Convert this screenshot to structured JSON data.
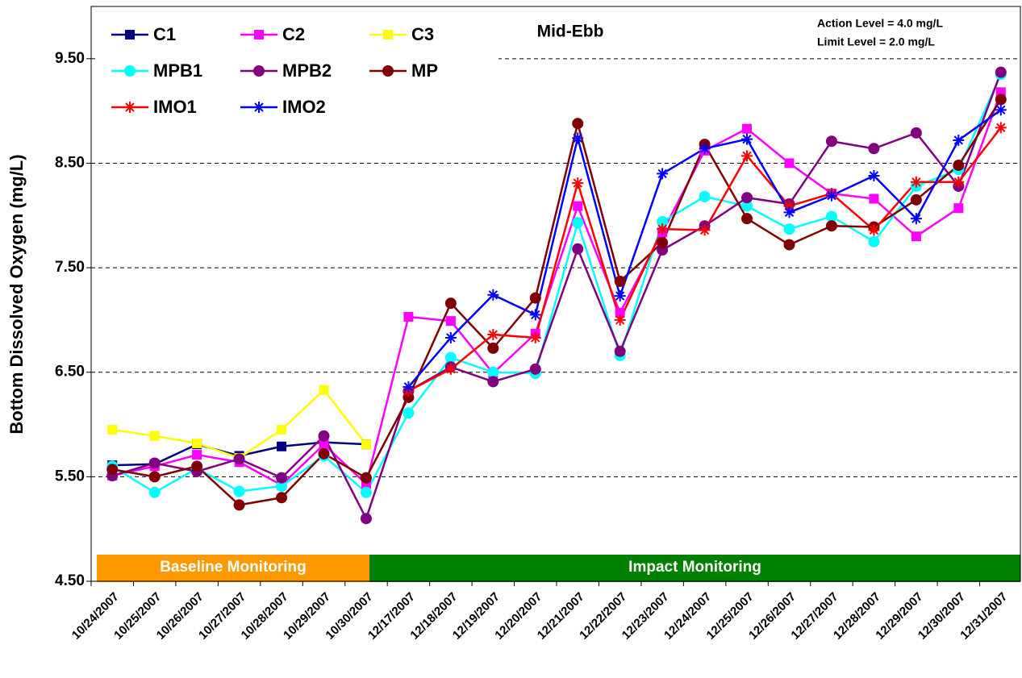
{
  "chart_data": {
    "type": "line",
    "title": "Mid-Ebb",
    "annotations": [
      "Action Level = 4.0 mg/L",
      "Limit Level = 2.0 mg/L"
    ],
    "y_label": "Bottom Dissolved Oxygen (mg/L)",
    "phases": [
      {
        "label": "Baseline Monitoring",
        "color": "#ff9900"
      },
      {
        "label": "Impact Monitoring",
        "color": "#008000"
      }
    ],
    "categories": [
      "10/24/2007",
      "10/25/2007",
      "10/26/2007",
      "10/27/2007",
      "10/28/2007",
      "10/29/2007",
      "10/30/2007",
      "12/17/2007",
      "12/18/2007",
      "12/19/2007",
      "12/20/2007",
      "12/21/2007",
      "12/22/2007",
      "12/23/2007",
      "12/24/2007",
      "12/25/2007",
      "12/26/2007",
      "12/27/2007",
      "12/28/2007",
      "12/29/2007",
      "12/30/2007",
      "12/31/2007"
    ],
    "ylim": [
      4.5,
      10.0
    ],
    "yticks": [
      {
        "value": 4.5,
        "label": "4.50"
      },
      {
        "value": 5.5,
        "label": "5.50"
      },
      {
        "value": 6.5,
        "label": "6.50"
      },
      {
        "value": 7.5,
        "label": "7.50"
      },
      {
        "value": 8.5,
        "label": "8.50"
      },
      {
        "value": 9.5,
        "label": "9.50"
      }
    ],
    "grid": true,
    "series": [
      {
        "name": "C1",
        "color": "#000080",
        "marker": "square",
        "values": [
          5.61,
          5.62,
          5.81,
          5.7,
          5.79,
          5.83,
          5.81,
          null,
          null,
          null,
          null,
          null,
          null,
          null,
          null,
          null,
          null,
          null,
          null,
          null,
          null,
          null
        ]
      },
      {
        "name": "C2",
        "color": "#ff00ff",
        "marker": "square",
        "values": [
          5.51,
          5.6,
          5.71,
          5.64,
          5.42,
          5.81,
          5.43,
          7.03,
          6.99,
          6.49,
          6.87,
          8.09,
          7.07,
          7.84,
          8.62,
          8.83,
          8.5,
          8.21,
          8.16,
          7.8,
          8.07,
          9.18
        ]
      },
      {
        "name": "C3",
        "color": "#ffff00",
        "marker": "square",
        "values": [
          5.95,
          5.89,
          5.82,
          5.68,
          5.95,
          6.33,
          5.81,
          null,
          null,
          null,
          null,
          null,
          null,
          null,
          null,
          null,
          null,
          null,
          null,
          null,
          null,
          null
        ]
      },
      {
        "name": "MPB1",
        "color": "#00ffff",
        "marker": "circle",
        "values": [
          5.6,
          5.35,
          5.58,
          5.36,
          5.41,
          5.7,
          5.35,
          6.11,
          6.64,
          6.5,
          6.49,
          7.93,
          6.66,
          7.94,
          8.18,
          8.09,
          7.87,
          7.99,
          7.75,
          8.28,
          8.44,
          9.35
        ]
      },
      {
        "name": "MPB2",
        "color": "#800080",
        "marker": "circle",
        "values": [
          5.51,
          5.63,
          5.55,
          5.67,
          5.49,
          5.89,
          5.1,
          6.32,
          6.55,
          6.41,
          6.53,
          7.68,
          6.7,
          7.67,
          7.9,
          8.17,
          8.11,
          8.71,
          8.64,
          8.79,
          8.28,
          9.37
        ]
      },
      {
        "name": "MP",
        "color": "#800000",
        "marker": "circle",
        "values": [
          5.57,
          5.5,
          5.6,
          5.23,
          5.3,
          5.72,
          5.49,
          6.26,
          7.16,
          6.73,
          7.21,
          8.88,
          7.37,
          7.74,
          8.68,
          7.97,
          7.72,
          7.9,
          7.89,
          8.15,
          8.48,
          9.11
        ]
      },
      {
        "name": "IMO1",
        "color": "#ff0000",
        "marker": "star",
        "values": [
          null,
          null,
          null,
          null,
          null,
          null,
          null,
          6.32,
          6.53,
          6.86,
          6.83,
          8.31,
          7.0,
          7.87,
          7.86,
          8.57,
          8.09,
          8.21,
          7.86,
          8.32,
          8.32,
          8.84
        ]
      },
      {
        "name": "IMO2",
        "color": "#0000ff",
        "marker": "star",
        "values": [
          null,
          null,
          null,
          null,
          null,
          null,
          null,
          6.36,
          6.83,
          7.24,
          7.05,
          8.74,
          7.23,
          8.4,
          8.64,
          8.73,
          8.03,
          8.19,
          8.38,
          7.97,
          8.72,
          9.01
        ]
      }
    ]
  }
}
